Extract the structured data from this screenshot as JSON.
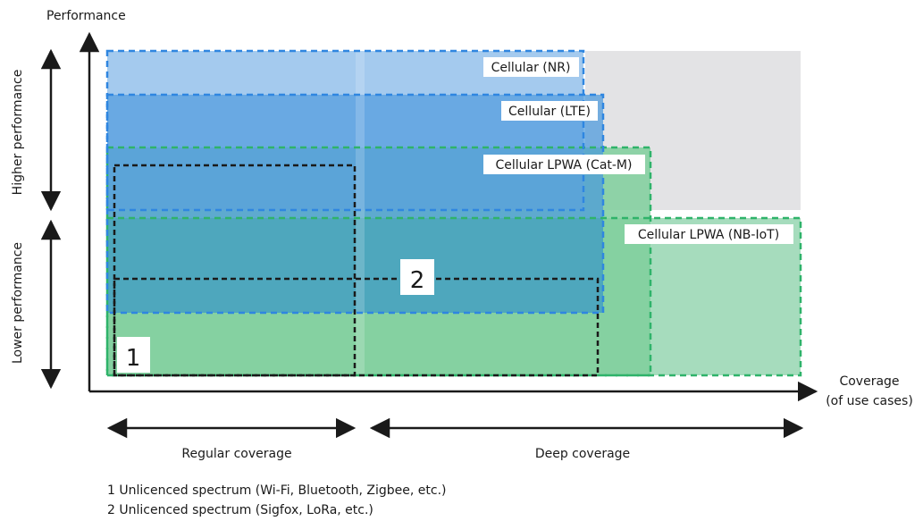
{
  "axes": {
    "y_title": "Performance",
    "x_title_line1": "Coverage",
    "x_title_line2": "(of use cases)"
  },
  "side_labels": {
    "higher": "Higher performance",
    "lower": "Lower performance"
  },
  "bottom_labels": {
    "regular": "Regular coverage",
    "deep": "Deep coverage"
  },
  "regions": {
    "nr": "Cellular (NR)",
    "lte": "Cellular (LTE)",
    "catm": "Cellular LPWA (Cat-M)",
    "nbiot": "Cellular LPWA (NB-IoT)"
  },
  "markers": {
    "one": "1",
    "two": "2"
  },
  "footnotes": {
    "line1": "1 Unlicenced spectrum (Wi-Fi, Bluetooth, Zigbee, etc.)",
    "line2": "2 Unlicenced spectrum (Sigfox, LoRa, etc.)"
  },
  "colors": {
    "grey_region": "#e3e3e5",
    "blue_fill": "#3d8fd9",
    "blue_border": "#2f86e0",
    "green_fill": "#4cbf7d",
    "green_border": "#2fb36a",
    "dashed_black": "#1a1a1a"
  }
}
